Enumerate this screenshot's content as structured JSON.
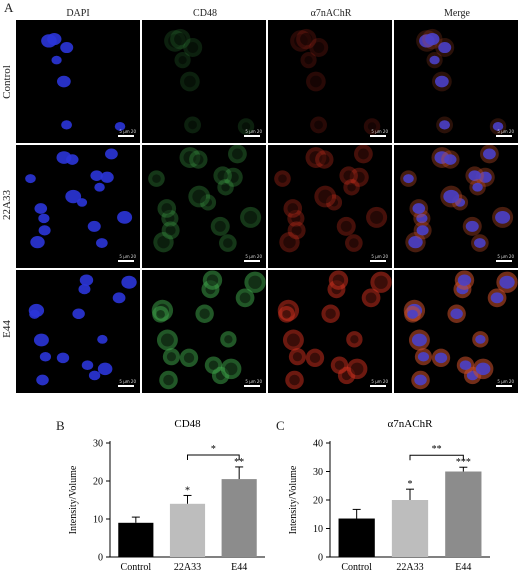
{
  "figure": {
    "panel_a": "A",
    "panel_b": "B",
    "panel_c": "C",
    "columns": [
      "DAPI",
      "CD48",
      "α7nAChR",
      "Merge"
    ],
    "rows": [
      "Control",
      "22A33",
      "E44"
    ],
    "scale_text": "5 μm 20",
    "colors": {
      "dapi": "#2b35d8",
      "cd48": "#3fa64a",
      "achr": "#d0301f",
      "merge_nuc": "#4a40c8",
      "merge_cyto": "#c8502a"
    }
  },
  "chart_data": [
    {
      "type": "bar",
      "title": "CD48",
      "xlabel": "",
      "ylabel": "Intensity/Volume",
      "categories": [
        "Control",
        "22A33",
        "E44"
      ],
      "values": [
        9,
        14,
        20.5
      ],
      "errors": [
        1.5,
        2.2,
        3.2
      ],
      "colors": [
        "#000000",
        "#bdbdbd",
        "#8c8c8c"
      ],
      "sig_above_bars": [
        "",
        "*",
        "**"
      ],
      "bracket": {
        "from": "22A33",
        "to": "E44",
        "label": "*"
      },
      "ylim": [
        0,
        30
      ],
      "yticks": [
        0,
        10,
        20,
        30
      ]
    },
    {
      "type": "bar",
      "title": "α7nAChR",
      "xlabel": "",
      "ylabel": "Intensity/Volume",
      "categories": [
        "Control",
        "22A33",
        "E44"
      ],
      "values": [
        13.5,
        20,
        30
      ],
      "errors": [
        3.2,
        3.8,
        1.5
      ],
      "colors": [
        "#000000",
        "#bdbdbd",
        "#8c8c8c"
      ],
      "sig_above_bars": [
        "",
        "*",
        "***"
      ],
      "bracket": {
        "from": "22A33",
        "to": "E44",
        "label": "**"
      },
      "ylim": [
        0,
        40
      ],
      "yticks": [
        0,
        10,
        20,
        30,
        40
      ]
    }
  ]
}
